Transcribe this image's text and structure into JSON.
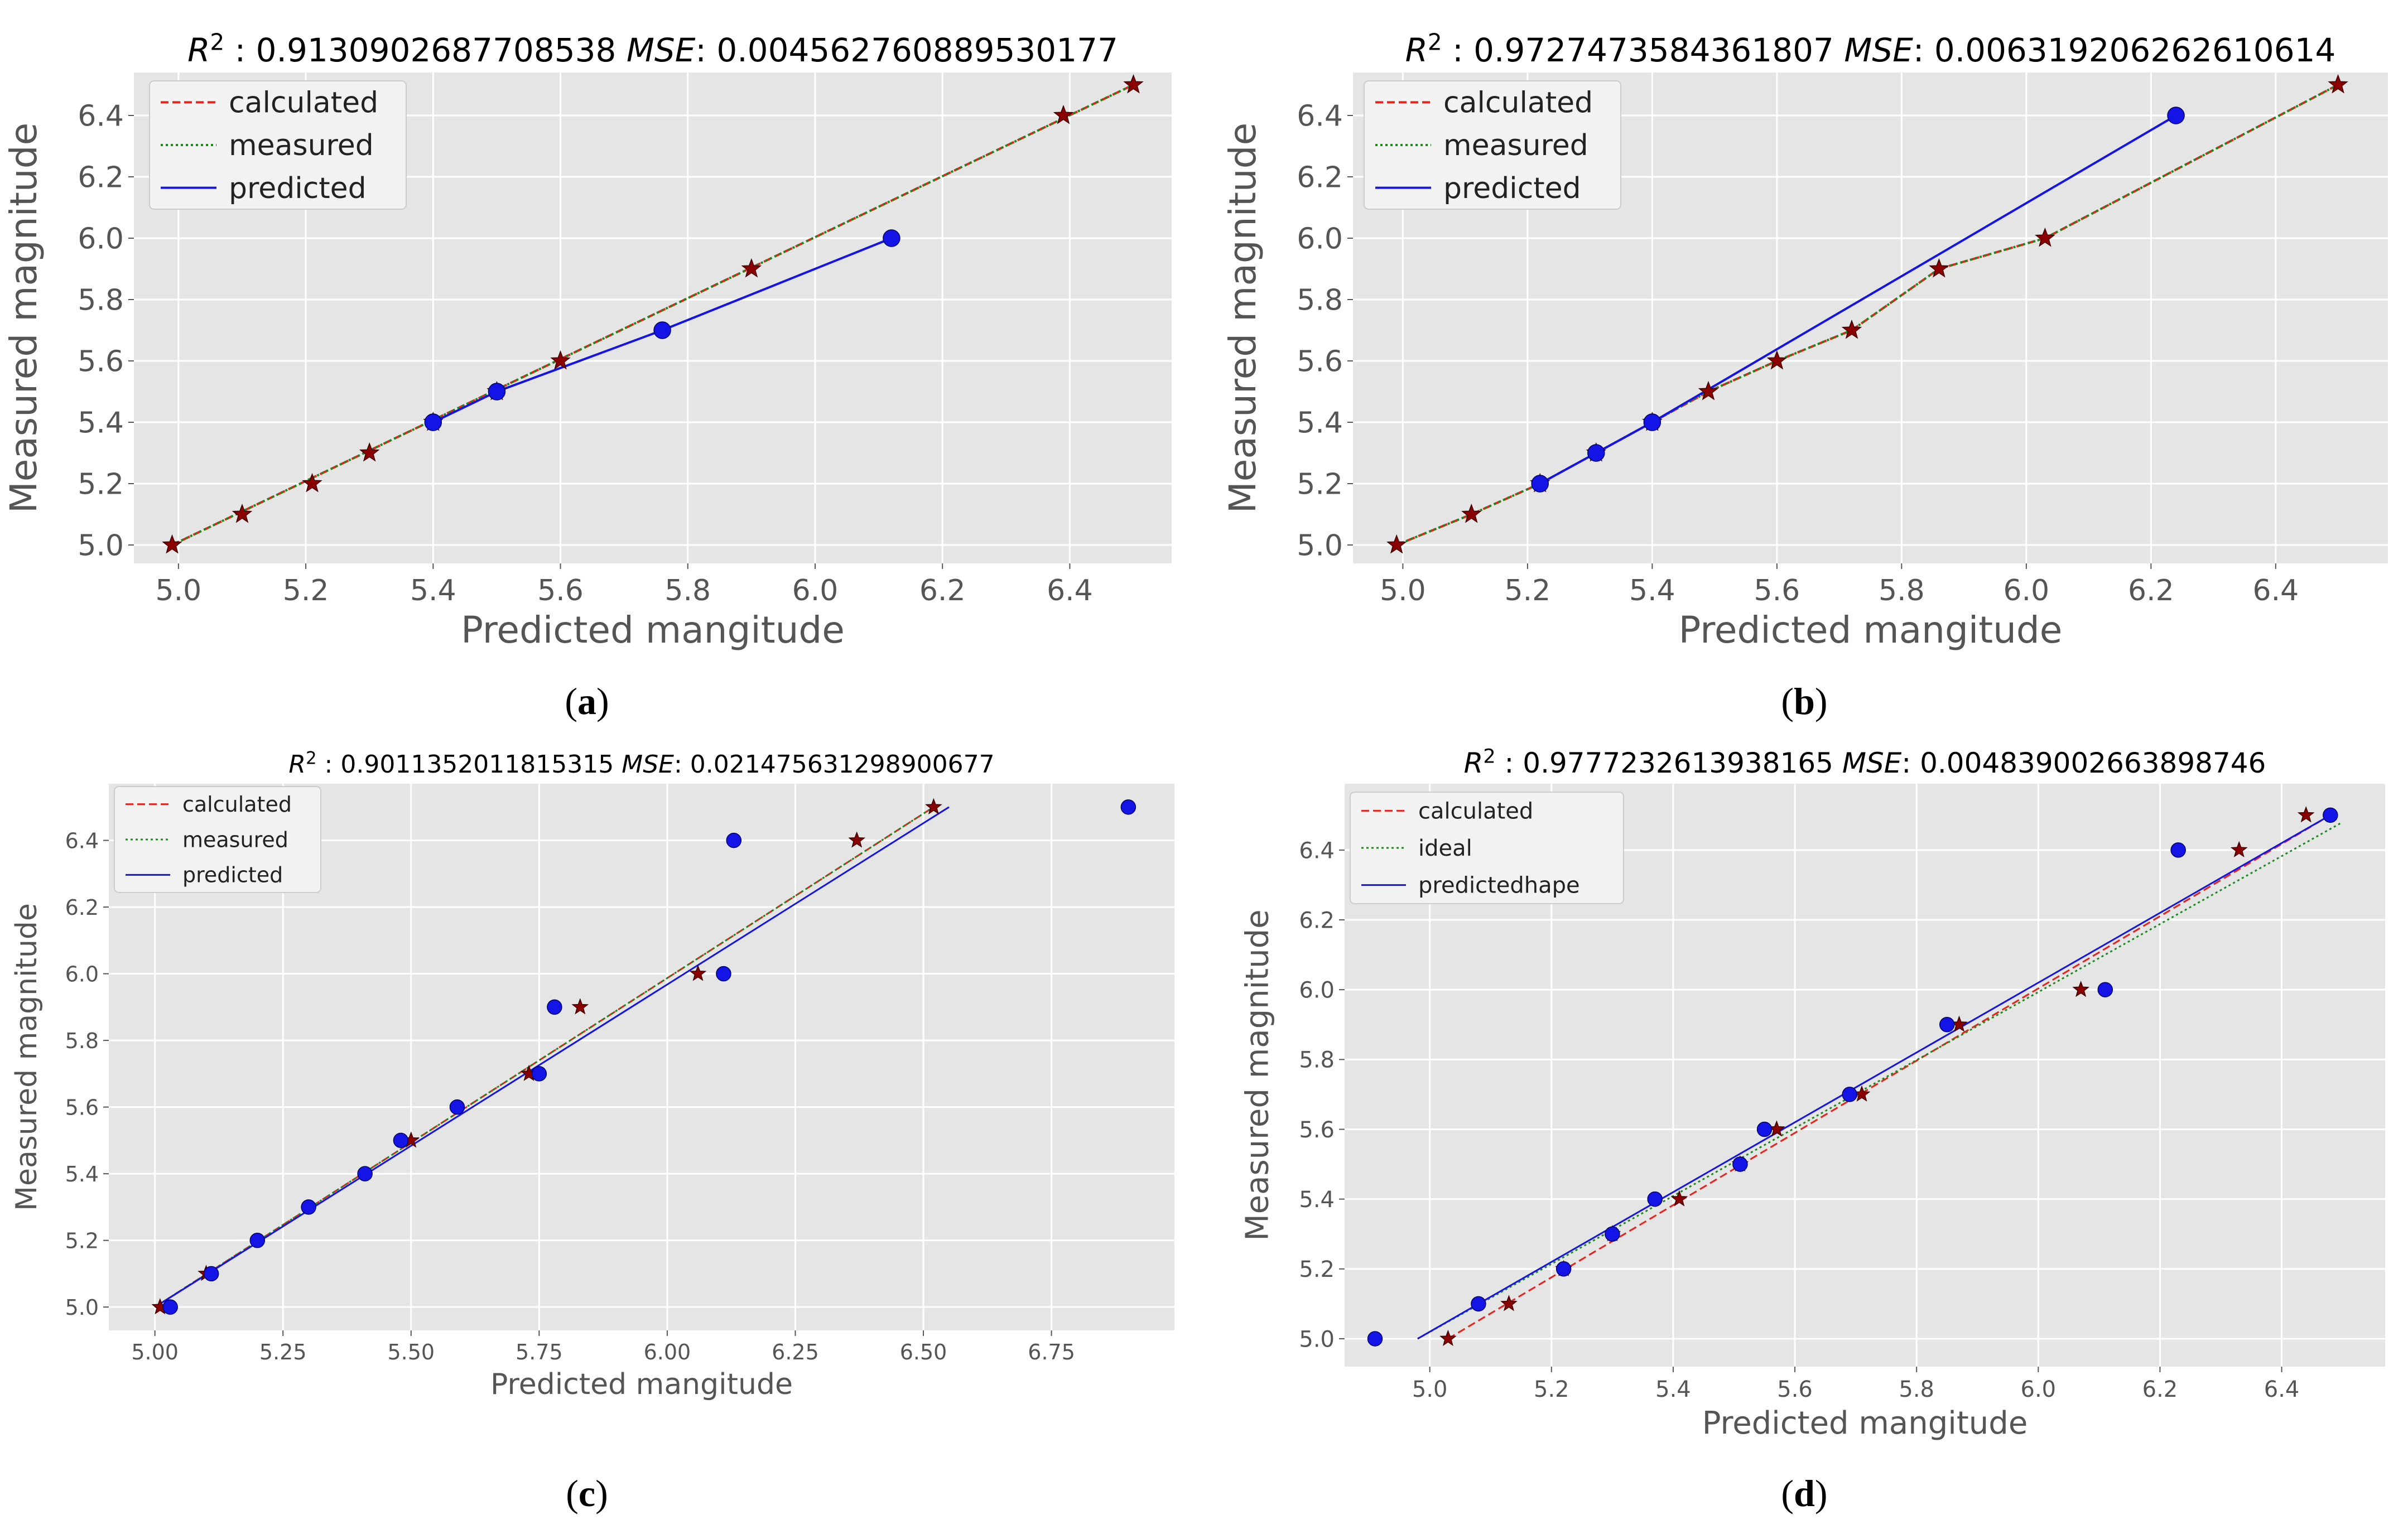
{
  "chart_data": [
    {
      "id": "a",
      "type": "scatter",
      "title_r2_value": "0.9130902687708538",
      "title_mse_value": "0.004562760889530177",
      "xlabel": "Predicted mangitude",
      "ylabel": "Measured magnitude",
      "xlim": [
        4.93,
        6.56
      ],
      "ylim": [
        4.94,
        6.54
      ],
      "xticks": [
        5.0,
        5.2,
        5.4,
        5.6,
        5.8,
        6.0,
        6.2,
        6.4
      ],
      "yticks": [
        5.0,
        5.2,
        5.4,
        5.6,
        5.8,
        6.0,
        6.2,
        6.4
      ],
      "tick_decimals": 1,
      "legend": [
        "calculated",
        "measured",
        "predicted"
      ],
      "calculated_points": [
        [
          4.99,
          5.0
        ],
        [
          5.1,
          5.1
        ],
        [
          5.21,
          5.2
        ],
        [
          5.3,
          5.3
        ],
        [
          5.4,
          5.4
        ],
        [
          5.5,
          5.5
        ],
        [
          5.6,
          5.6
        ],
        [
          5.9,
          5.9
        ],
        [
          6.39,
          6.4
        ],
        [
          6.5,
          6.5
        ]
      ],
      "calculated_line": [
        [
          4.99,
          5.0
        ],
        [
          6.5,
          6.5
        ]
      ],
      "measured_line": [
        [
          4.99,
          5.0
        ],
        [
          6.5,
          6.5
        ]
      ],
      "predicted_points": [
        [
          5.4,
          5.4
        ],
        [
          5.5,
          5.5
        ],
        [
          5.76,
          5.7
        ],
        [
          6.12,
          6.0
        ]
      ],
      "predicted_line": [
        [
          5.4,
          5.4
        ],
        [
          5.5,
          5.5
        ],
        [
          5.76,
          5.7
        ],
        [
          6.12,
          6.0
        ]
      ],
      "caption": "a"
    },
    {
      "id": "b",
      "type": "scatter",
      "title_r2_value": "0.9727473584361807",
      "title_mse_value": "0.006319206262610614",
      "xlabel": "Predicted mangitude",
      "ylabel": "Measured magnitude",
      "xlim": [
        4.92,
        6.58
      ],
      "ylim": [
        4.94,
        6.54
      ],
      "xticks": [
        5.0,
        5.2,
        5.4,
        5.6,
        5.8,
        6.0,
        6.2,
        6.4
      ],
      "yticks": [
        5.0,
        5.2,
        5.4,
        5.6,
        5.8,
        6.0,
        6.2,
        6.4
      ],
      "tick_decimals": 1,
      "legend": [
        "calculated",
        "measured",
        "predicted"
      ],
      "calculated_points": [
        [
          4.99,
          5.0
        ],
        [
          5.11,
          5.1
        ],
        [
          5.22,
          5.2
        ],
        [
          5.31,
          5.3
        ],
        [
          5.4,
          5.4
        ],
        [
          5.49,
          5.5
        ],
        [
          5.6,
          5.6
        ],
        [
          5.72,
          5.7
        ],
        [
          5.86,
          5.9
        ],
        [
          6.03,
          6.0
        ],
        [
          6.5,
          6.5
        ]
      ],
      "calculated_line": [
        [
          4.99,
          5.0
        ],
        [
          5.11,
          5.1
        ],
        [
          5.22,
          5.2
        ],
        [
          5.31,
          5.3
        ],
        [
          5.4,
          5.4
        ],
        [
          5.49,
          5.5
        ],
        [
          5.6,
          5.6
        ],
        [
          5.72,
          5.7
        ],
        [
          5.86,
          5.9
        ],
        [
          6.03,
          6.0
        ],
        [
          6.5,
          6.5
        ]
      ],
      "measured_line": [
        [
          4.99,
          5.0
        ],
        [
          5.11,
          5.1
        ],
        [
          5.22,
          5.2
        ],
        [
          5.31,
          5.3
        ],
        [
          5.4,
          5.4
        ],
        [
          5.49,
          5.5
        ],
        [
          5.6,
          5.6
        ],
        [
          5.72,
          5.7
        ],
        [
          5.86,
          5.9
        ],
        [
          6.03,
          6.0
        ],
        [
          6.5,
          6.5
        ]
      ],
      "predicted_points": [
        [
          5.22,
          5.2
        ],
        [
          5.31,
          5.3
        ],
        [
          5.4,
          5.4
        ],
        [
          6.24,
          6.4
        ]
      ],
      "predicted_line": [
        [
          5.22,
          5.2
        ],
        [
          5.31,
          5.3
        ],
        [
          5.4,
          5.4
        ],
        [
          6.24,
          6.4
        ]
      ],
      "caption": "b"
    },
    {
      "id": "c",
      "type": "scatter",
      "title_r2_value": "0.9011352011815315",
      "title_mse_value": "0.021475631298900677",
      "xlabel": "Predicted mangitude",
      "ylabel": "Measured magnitude",
      "xlim": [
        4.91,
        6.99
      ],
      "ylim": [
        4.93,
        6.57
      ],
      "xticks": [
        5.0,
        5.25,
        5.5,
        5.75,
        6.0,
        6.25,
        6.5,
        6.75
      ],
      "yticks": [
        5.0,
        5.2,
        5.4,
        5.6,
        5.8,
        6.0,
        6.2,
        6.4
      ],
      "tick_decimals": 2,
      "legend": [
        "calculated",
        "measured",
        "predicted"
      ],
      "calculated_points": [
        [
          5.01,
          5.0
        ],
        [
          5.1,
          5.1
        ],
        [
          5.5,
          5.5
        ],
        [
          5.73,
          5.7
        ],
        [
          5.83,
          5.9
        ],
        [
          6.06,
          6.0
        ],
        [
          6.37,
          6.4
        ],
        [
          6.52,
          6.5
        ]
      ],
      "calculated_line": [
        [
          5.0,
          5.0
        ],
        [
          6.52,
          6.5
        ]
      ],
      "measured_line": [
        [
          5.0,
          5.0
        ],
        [
          6.52,
          6.5
        ]
      ],
      "predicted_points": [
        [
          5.03,
          5.0
        ],
        [
          5.11,
          5.1
        ],
        [
          5.2,
          5.2
        ],
        [
          5.3,
          5.3
        ],
        [
          5.41,
          5.4
        ],
        [
          5.48,
          5.5
        ],
        [
          5.59,
          5.6
        ],
        [
          5.75,
          5.7
        ],
        [
          5.78,
          5.9
        ],
        [
          6.11,
          6.0
        ],
        [
          6.13,
          6.4
        ],
        [
          6.9,
          6.5
        ]
      ],
      "predicted_line": [
        [
          5.0,
          5.0
        ],
        [
          6.55,
          6.5
        ]
      ],
      "caption": "c"
    },
    {
      "id": "d",
      "type": "scatter",
      "title_r2_value": "0.9777232613938165",
      "title_mse_value": "0.004839002663898746",
      "xlabel": "Predicted mangitude",
      "ylabel": "Measured magnitude",
      "xlim": [
        4.86,
        6.57
      ],
      "ylim": [
        4.92,
        6.59
      ],
      "xticks": [
        5.0,
        5.2,
        5.4,
        5.6,
        5.8,
        6.0,
        6.2,
        6.4
      ],
      "yticks": [
        5.0,
        5.2,
        5.4,
        5.6,
        5.8,
        6.0,
        6.2,
        6.4
      ],
      "tick_decimals": 1,
      "legend": [
        "calculated",
        "ideal",
        "predictedhape"
      ],
      "calculated_points": [
        [
          5.03,
          5.0
        ],
        [
          5.13,
          5.1
        ],
        [
          5.22,
          5.2
        ],
        [
          5.3,
          5.3
        ],
        [
          5.41,
          5.4
        ],
        [
          5.51,
          5.5
        ],
        [
          5.57,
          5.6
        ],
        [
          5.71,
          5.7
        ],
        [
          5.87,
          5.9
        ],
        [
          6.07,
          6.0
        ],
        [
          6.33,
          6.4
        ],
        [
          6.44,
          6.5
        ]
      ],
      "calculated_line": [
        [
          5.03,
          5.0
        ],
        [
          6.48,
          6.5
        ]
      ],
      "measured_line": [
        [
          4.98,
          5.0
        ],
        [
          6.5,
          6.48
        ]
      ],
      "predicted_points": [
        [
          4.91,
          5.0
        ],
        [
          5.08,
          5.1
        ],
        [
          5.22,
          5.2
        ],
        [
          5.3,
          5.3
        ],
        [
          5.37,
          5.4
        ],
        [
          5.51,
          5.5
        ],
        [
          5.55,
          5.6
        ],
        [
          5.69,
          5.7
        ],
        [
          5.85,
          5.9
        ],
        [
          6.11,
          6.0
        ],
        [
          6.23,
          6.4
        ],
        [
          6.48,
          6.5
        ]
      ],
      "predicted_line": [
        [
          4.98,
          5.0
        ],
        [
          6.48,
          6.5
        ]
      ],
      "caption": "d"
    }
  ],
  "colors": {
    "panel_bg": "#e5e5e5",
    "grid": "#ffffff",
    "calculated": "#e8231c",
    "measured": "#1a8a1a",
    "predicted": "#1414e6",
    "star": "#8b0000",
    "text": "#555555",
    "title": "#000000"
  }
}
